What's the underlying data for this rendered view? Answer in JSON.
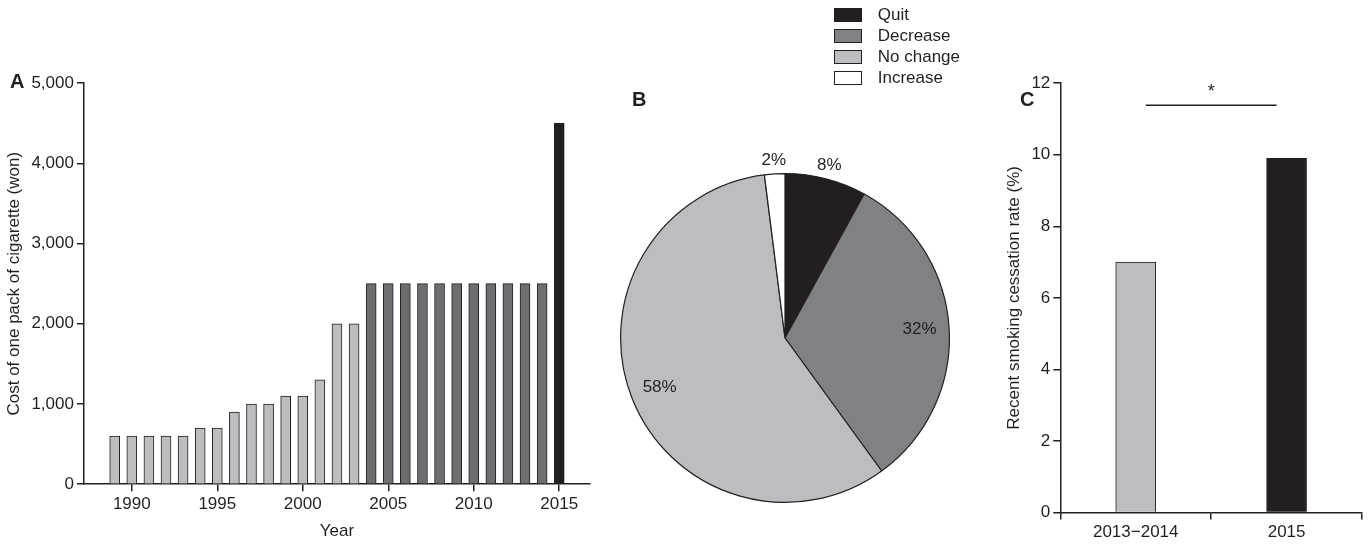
{
  "chart_data": [
    {
      "type": "bar",
      "title": "A",
      "xlabel": "Year",
      "ylabel": "Cost of one pack of cigarette (won)",
      "x": [
        1989,
        1990,
        1991,
        1992,
        1993,
        1994,
        1995,
        1996,
        1997,
        1998,
        1999,
        2000,
        2001,
        2002,
        2003,
        2004,
        2005,
        2006,
        2007,
        2008,
        2009,
        2010,
        2011,
        2012,
        2013,
        2014,
        2015
      ],
      "values": [
        600,
        600,
        600,
        600,
        600,
        700,
        700,
        900,
        1000,
        1000,
        1100,
        1100,
        1300,
        2000,
        2000,
        2500,
        2500,
        2500,
        2500,
        2500,
        2500,
        2500,
        2500,
        2500,
        2500,
        2500,
        4500
      ],
      "colors": [
        "#bcbdc1",
        "#bcbdc1",
        "#bcbdc1",
        "#bcbdc1",
        "#bcbdc1",
        "#bcbdc1",
        "#bcbdc1",
        "#bcbdc1",
        "#bcbdc1",
        "#bcbdc1",
        "#bcbdc1",
        "#bcbdc1",
        "#bcbdc1",
        "#bcbdc1",
        "#bcbdc1",
        "#6d6e72",
        "#6d6e72",
        "#6d6e72",
        "#6d6e72",
        "#6d6e72",
        "#6d6e72",
        "#6d6e72",
        "#6d6e72",
        "#6d6e72",
        "#6d6e72",
        "#6d6e72",
        "#231f20"
      ],
      "xlim": [
        1987.2,
        2016.8
      ],
      "xticks": [
        1990,
        1995,
        2000,
        2005,
        2010,
        2015
      ],
      "ylim": [
        0,
        5000
      ],
      "yticks": [
        0,
        {
          "value": 1000,
          "label": "1,000"
        },
        {
          "value": 2000,
          "label": "2,000"
        },
        {
          "value": 3000,
          "label": "3,000"
        },
        {
          "value": 4000,
          "label": "4,000"
        },
        {
          "value": 5000,
          "label": "5,000"
        }
      ],
      "grid": false
    },
    {
      "type": "pie",
      "title": "B",
      "categories": [
        "Quit",
        "Decrease",
        "No change",
        "Increase"
      ],
      "values": [
        8,
        32,
        58,
        2
      ],
      "colors": [
        "#231f20",
        "#808185",
        "#bcbdc1",
        "#ffffff"
      ],
      "value_labels": [
        "8%",
        "32%",
        "58%",
        "2%"
      ],
      "legend": "top right"
    },
    {
      "type": "bar",
      "title": "C",
      "ylabel": "Recent smoking cessation rate (%)",
      "categories": [
        "2013−2014",
        "2015"
      ],
      "values": [
        7,
        9.9
      ],
      "colors": [
        "#bcbdc1",
        "#231f20"
      ],
      "ylim": [
        0,
        12
      ],
      "yticks": [
        0,
        2,
        4,
        6,
        8,
        10,
        12
      ],
      "grid": false,
      "annotations": [
        "*"
      ]
    }
  ]
}
